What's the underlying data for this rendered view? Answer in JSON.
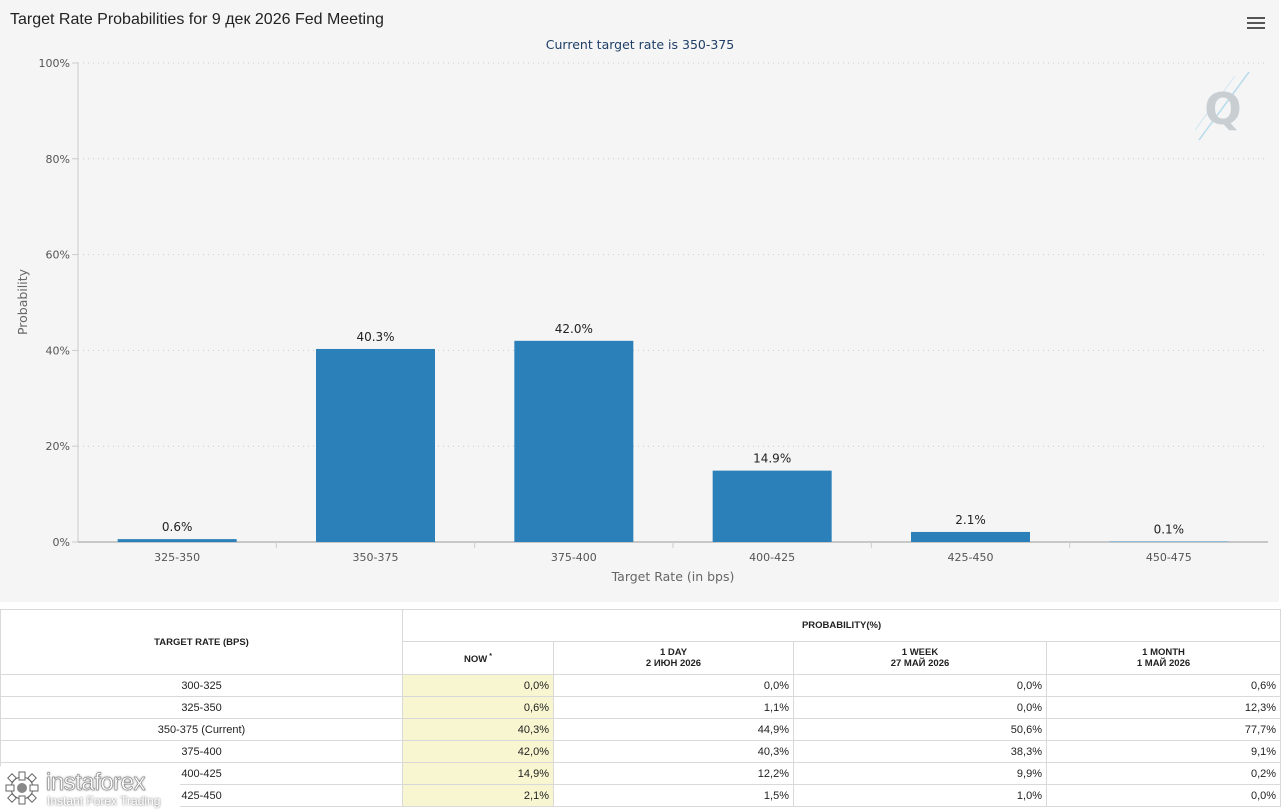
{
  "chart_title": "Target Rate Probabilities for 9 дек 2026 Fed Meeting",
  "chart_subtitle": "Current target rate is 350-375",
  "chart_data": {
    "type": "bar",
    "title": "Target Rate Probabilities for 9 дек 2026 Fed Meeting",
    "subtitle": "Current target rate is 350-375",
    "categories": [
      "325-350",
      "350-375",
      "375-400",
      "400-425",
      "425-450",
      "450-475"
    ],
    "values": [
      0.6,
      40.3,
      42.0,
      14.9,
      2.1,
      0.1
    ],
    "value_labels": [
      "0.6%",
      "40.3%",
      "42.0%",
      "14.9%",
      "2.1%",
      "0.1%"
    ],
    "xlabel": "Target Rate (in bps)",
    "ylabel": "Probability",
    "ylim": [
      0,
      100
    ],
    "yticks": [
      "0%",
      "20%",
      "40%",
      "60%",
      "80%",
      "100%"
    ],
    "ytick_values": [
      0,
      20,
      40,
      60,
      80,
      100
    ],
    "grid": true,
    "bar_color": "#2b80b9"
  },
  "table": {
    "target_header": "TARGET RATE (BPS)",
    "probability_header": "PROBABILITY(%)",
    "columns": [
      {
        "label": "NOW",
        "marker": "*",
        "date": ""
      },
      {
        "label": "1 DAY",
        "marker": "",
        "date": "2 ИЮН 2026"
      },
      {
        "label": "1 WEEK",
        "marker": "",
        "date": "27 МАЙ 2026"
      },
      {
        "label": "1 MONTH",
        "marker": "",
        "date": "1 МАЙ 2026"
      }
    ],
    "rows": [
      {
        "rate": "300-325",
        "values": [
          "0,0%",
          "0,0%",
          "0,0%",
          "0,6%"
        ]
      },
      {
        "rate": "325-350",
        "values": [
          "0,6%",
          "1,1%",
          "0,0%",
          "12,3%"
        ]
      },
      {
        "rate": "350-375 (Current)",
        "values": [
          "40,3%",
          "44,9%",
          "50,6%",
          "77,7%"
        ]
      },
      {
        "rate": "375-400",
        "values": [
          "42,0%",
          "40,3%",
          "38,3%",
          "9,1%"
        ]
      },
      {
        "rate": "400-425",
        "values": [
          "14,9%",
          "12,2%",
          "9,9%",
          "0,2%"
        ]
      },
      {
        "rate": "425-450",
        "values": [
          "2,1%",
          "1,5%",
          "1,0%",
          "0,0%"
        ]
      }
    ],
    "now_highlight": "#f8f6d0"
  },
  "logo": {
    "name": "instaforex",
    "tagline": "Instant Forex Trading"
  },
  "icons": {
    "menu": "hamburger-menu-icon",
    "watermark": "q-watermark-icon",
    "logo": "gear-logo-icon"
  }
}
